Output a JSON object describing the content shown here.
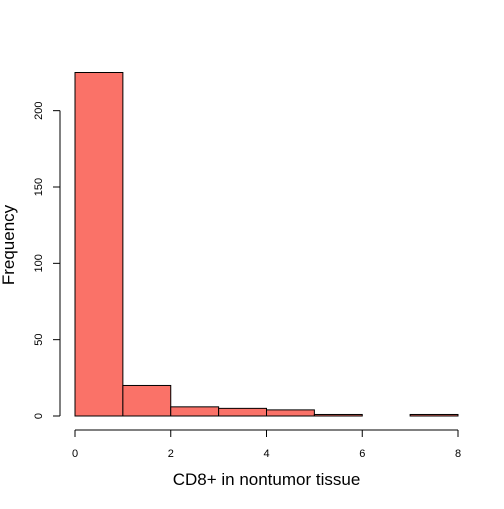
{
  "chart_data": {
    "type": "bar",
    "subtype": "histogram",
    "bin_edges": [
      0,
      1,
      2,
      3,
      4,
      5,
      6,
      7,
      8
    ],
    "values": [
      225,
      20,
      6,
      5,
      4,
      1,
      0,
      1
    ],
    "xlabel": "CD8+ in nontumor tissue",
    "ylabel": "Frequency",
    "xlim": [
      0,
      8
    ],
    "ylim": [
      0,
      225
    ],
    "x_ticks": [
      0,
      2,
      4,
      6,
      8
    ],
    "y_ticks": [
      0,
      50,
      100,
      150,
      200
    ],
    "bar_color": "#fa7268",
    "bar_edge_color": "#000000",
    "grid": false,
    "legend": "none"
  }
}
